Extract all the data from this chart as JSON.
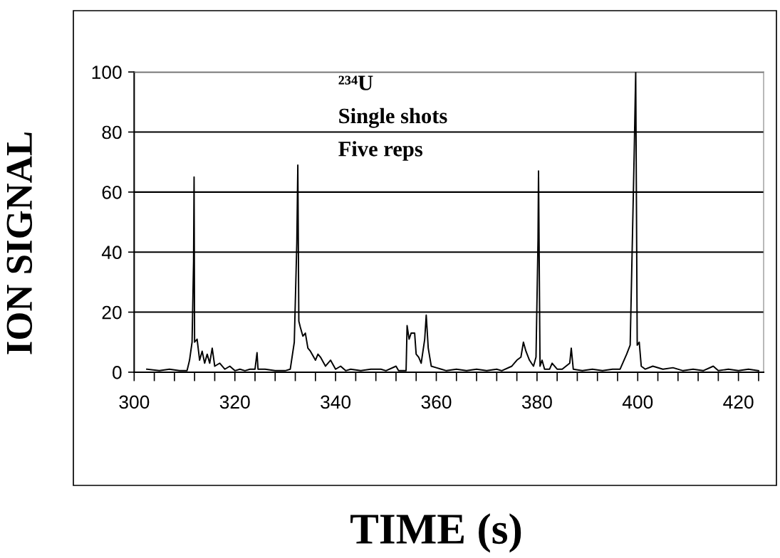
{
  "chart_data": {
    "type": "line",
    "xlabel": "TIME (s)",
    "ylabel": "ION SIGNAL",
    "annotations": [
      "²³⁴U",
      "Single shots",
      "Five reps"
    ],
    "series": [
      {
        "color": "#000000",
        "x": [
          302.5,
          305,
          307,
          309,
          310.5,
          311,
          311.5,
          311.8,
          311.9,
          312.0,
          312.5,
          313,
          313.5,
          314,
          314.5,
          315,
          315.5,
          316,
          317,
          318,
          319,
          320,
          321,
          322,
          323,
          324,
          324.4,
          324.6,
          326,
          328,
          330,
          331,
          331.8,
          332.3,
          332.5,
          332.7,
          333,
          333.5,
          334,
          334.5,
          335,
          336,
          336.5,
          337,
          338,
          339,
          340,
          341,
          342,
          343,
          345,
          347,
          349,
          350,
          352,
          352.5,
          354,
          354.2,
          354.6,
          355,
          355.7,
          356,
          356.5,
          357,
          357.7,
          358,
          358.4,
          359,
          360,
          361,
          362,
          364,
          366,
          368,
          370,
          372,
          373,
          375,
          376,
          376.8,
          377.3,
          377.8,
          378.5,
          379.3,
          379.8,
          380.2,
          380.3,
          380.6,
          381,
          381.5,
          382.5,
          383,
          384,
          385,
          386.5,
          386.8,
          387.2,
          389,
          391,
          393,
          395,
          396.5,
          397.8,
          398.5,
          399.3,
          399.6,
          399.9,
          400.3,
          400.7,
          401.5,
          403,
          405,
          407,
          409,
          411,
          413,
          415,
          416,
          418,
          420,
          422,
          424
        ],
        "values": [
          1,
          0.5,
          1,
          0.5,
          0.5,
          4,
          10,
          37,
          65,
          10,
          11,
          4,
          7,
          3,
          6,
          3,
          8,
          2,
          3,
          1,
          2,
          0.5,
          1,
          0.5,
          1,
          1,
          6.5,
          1,
          1,
          0.5,
          0.5,
          1,
          10,
          43,
          69,
          17,
          15,
          12,
          13,
          8,
          7,
          4,
          6,
          5,
          2,
          4,
          1,
          2,
          0.5,
          1,
          0.5,
          1,
          1,
          0.5,
          2,
          0.5,
          0.5,
          15.5,
          11,
          13,
          13,
          6,
          5,
          3,
          11,
          19,
          8,
          2,
          1.5,
          1,
          0.5,
          1,
          0.5,
          1,
          0.5,
          1,
          0.5,
          2,
          4,
          5,
          10,
          7,
          4,
          2,
          5,
          44,
          67,
          2,
          4,
          1,
          1,
          3,
          1,
          1,
          3,
          8,
          1,
          0.5,
          1,
          0.5,
          1,
          1,
          6,
          9,
          73,
          100,
          9,
          10,
          2,
          1,
          2,
          1,
          1.5,
          0.5,
          1,
          0.5,
          2,
          0.5,
          1,
          0.5,
          1,
          0.5
        ]
      }
    ],
    "xlim": [
      300,
      425
    ],
    "ylim": [
      0,
      100
    ],
    "xticks": [
      300,
      {
        "value": 304,
        "label": null
      },
      {
        "value": 308,
        "label": null
      },
      {
        "value": 312,
        "label": null
      },
      {
        "value": 316,
        "label": null
      },
      320,
      {
        "value": 324,
        "label": null
      },
      {
        "value": 328,
        "label": null
      },
      {
        "value": 332,
        "label": null
      },
      {
        "value": 336,
        "label": null
      },
      340,
      {
        "value": 344,
        "label": null
      },
      {
        "value": 348,
        "label": null
      },
      {
        "value": 352,
        "label": null
      },
      {
        "value": 356,
        "label": null
      },
      360,
      {
        "value": 364,
        "label": null
      },
      {
        "value": 368,
        "label": null
      },
      {
        "value": 372,
        "label": null
      },
      {
        "value": 376,
        "label": null
      },
      380,
      {
        "value": 384,
        "label": null
      },
      {
        "value": 388,
        "label": null
      },
      {
        "value": 392,
        "label": null
      },
      {
        "value": 396,
        "label": null
      },
      400,
      {
        "value": 404,
        "label": null
      },
      {
        "value": 408,
        "label": null
      },
      {
        "value": 412,
        "label": null
      },
      {
        "value": 416,
        "label": null
      },
      420,
      {
        "value": 424,
        "label": null
      }
    ],
    "yticks": [
      0,
      20,
      40,
      60,
      80,
      100
    ],
    "grid": "y",
    "marker": "none",
    "line_style": "solid"
  }
}
